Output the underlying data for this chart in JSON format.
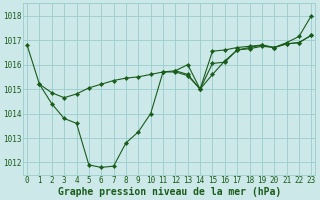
{
  "xlabel": "Graphe pression niveau de la mer (hPa)",
  "ylim": [
    1011.5,
    1018.5
  ],
  "xlim": [
    -0.3,
    23.3
  ],
  "yticks": [
    1012,
    1013,
    1014,
    1015,
    1016,
    1017,
    1018
  ],
  "xticks": [
    0,
    1,
    2,
    3,
    4,
    5,
    6,
    7,
    8,
    9,
    10,
    11,
    12,
    13,
    14,
    15,
    16,
    17,
    18,
    19,
    20,
    21,
    22,
    23
  ],
  "background_color": "#cce8e8",
  "grid_color": "#99cccc",
  "line_color": "#1a5c1a",
  "series": [
    {
      "x": [
        0,
        1,
        2,
        3,
        4,
        5,
        6,
        7,
        8,
        9,
        10,
        11,
        12,
        13,
        14,
        15,
        16,
        17,
        18,
        19,
        20,
        21,
        22,
        23
      ],
      "y": [
        1016.8,
        1015.2,
        1014.4,
        1013.8,
        1013.6,
        1011.9,
        1011.8,
        1011.85,
        1012.8,
        1013.25,
        1014.0,
        1015.7,
        1015.7,
        1015.55,
        1015.0,
        1016.05,
        1016.1,
        1016.6,
        1016.7,
        1016.8,
        1016.7,
        1016.9,
        1017.15,
        1018.0
      ]
    },
    {
      "x": [
        1,
        2,
        3,
        4,
        5,
        6,
        7,
        8,
        9,
        10,
        11,
        12,
        13,
        14,
        15,
        16,
        17,
        18,
        19,
        20,
        21,
        22,
        23
      ],
      "y": [
        1015.2,
        1014.85,
        1014.65,
        1014.8,
        1015.05,
        1015.2,
        1015.35,
        1015.45,
        1015.5,
        1015.6,
        1015.7,
        1015.75,
        1016.0,
        1015.0,
        1015.6,
        1016.15,
        1016.6,
        1016.65,
        1016.75,
        1016.7,
        1016.85,
        1016.9,
        1017.2
      ]
    },
    {
      "x": [
        12,
        13,
        14,
        15,
        16,
        17,
        18,
        19,
        20,
        21,
        22,
        23
      ],
      "y": [
        1015.75,
        1015.6,
        1015.0,
        1016.55,
        1016.6,
        1016.7,
        1016.75,
        1016.8,
        1016.7,
        1016.85,
        1016.9,
        1017.2
      ]
    }
  ],
  "tick_fontsize": 5.5,
  "label_fontsize": 7.0,
  "figsize": [
    3.2,
    2.0
  ],
  "dpi": 100
}
